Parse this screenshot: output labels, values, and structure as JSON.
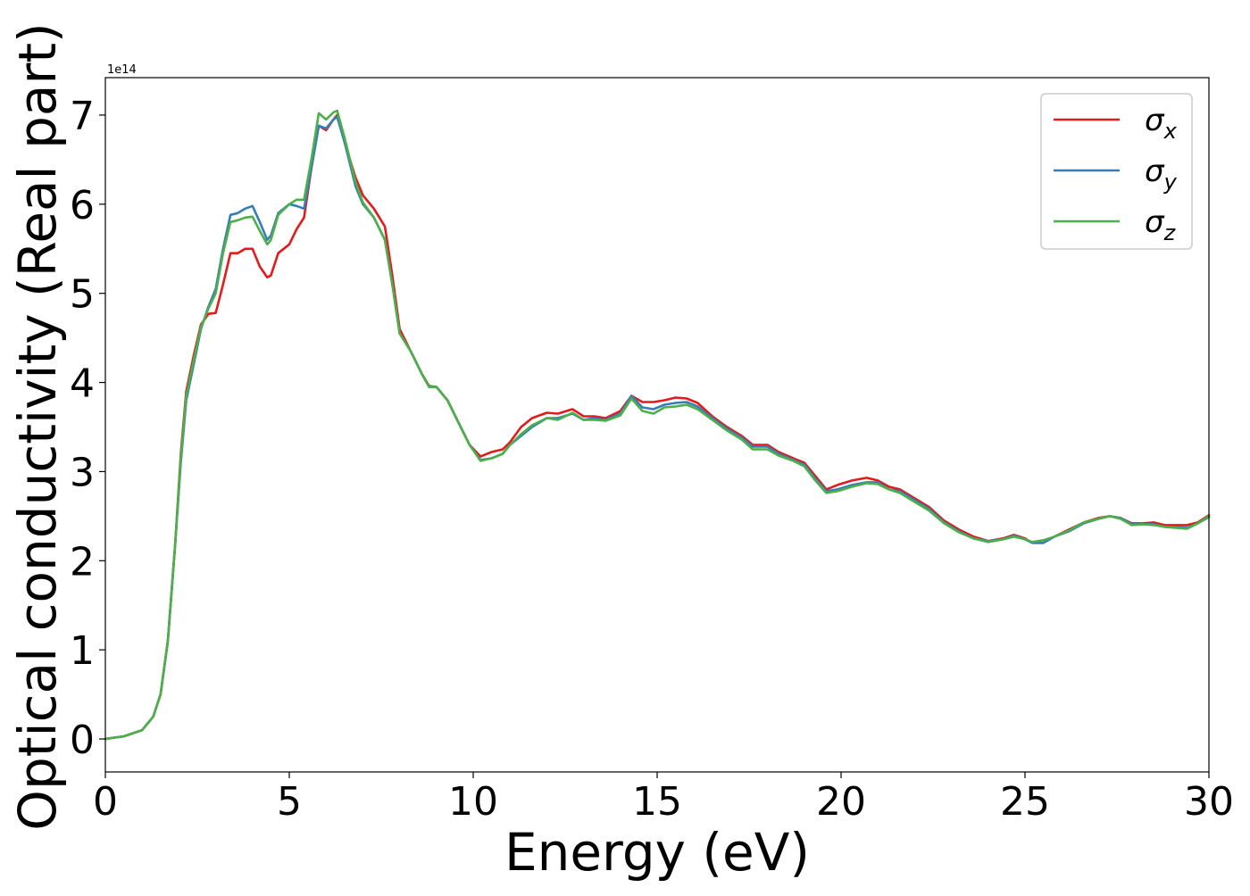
{
  "chart_data": {
    "type": "line",
    "xlabel": "Energy (eV)",
    "ylabel": "Optical conductivity (Real part)",
    "y_offset_label": "1e14",
    "xlim": [
      0,
      30
    ],
    "ylim": [
      -0.37,
      7.42
    ],
    "x_ticks": [
      0,
      5,
      10,
      15,
      20,
      25,
      30
    ],
    "y_ticks": [
      0,
      1,
      2,
      3,
      4,
      5,
      6,
      7
    ],
    "grid": false,
    "legend_position": "top-right",
    "series": [
      {
        "name": "σ",
        "subscript": "x",
        "color": "#e41a1c",
        "x": [
          0,
          0.5,
          1.0,
          1.3,
          1.5,
          1.7,
          1.9,
          2.05,
          2.2,
          2.4,
          2.6,
          2.8,
          3.0,
          3.2,
          3.4,
          3.6,
          3.8,
          4.0,
          4.2,
          4.4,
          4.5,
          4.7,
          5.0,
          5.2,
          5.4,
          5.6,
          5.8,
          6.0,
          6.2,
          6.3,
          6.5,
          6.8,
          7.0,
          7.3,
          7.6,
          7.8,
          8.0,
          8.3,
          8.6,
          8.8,
          9.0,
          9.3,
          9.6,
          9.9,
          10.2,
          10.5,
          10.8,
          11.0,
          11.3,
          11.6,
          12.0,
          12.3,
          12.7,
          13.0,
          13.3,
          13.6,
          14.0,
          14.3,
          14.6,
          14.9,
          15.2,
          15.5,
          15.8,
          16.1,
          16.5,
          16.9,
          17.3,
          17.6,
          18.0,
          18.3,
          18.7,
          19.0,
          19.3,
          19.6,
          19.9,
          20.3,
          20.7,
          21.0,
          21.3,
          21.6,
          22.0,
          22.4,
          22.8,
          23.2,
          23.6,
          24.0,
          24.4,
          24.7,
          25.0,
          25.2,
          25.5,
          25.8,
          26.2,
          26.6,
          27.0,
          27.3,
          27.6,
          27.9,
          28.2,
          28.5,
          28.8,
          29.1,
          29.4,
          29.7,
          30.0
        ],
        "y": [
          0,
          0.03,
          0.1,
          0.25,
          0.5,
          1.1,
          2.2,
          3.2,
          3.9,
          4.3,
          4.65,
          4.77,
          4.78,
          5.1,
          5.45,
          5.45,
          5.5,
          5.5,
          5.3,
          5.18,
          5.2,
          5.45,
          5.55,
          5.72,
          5.85,
          6.4,
          6.88,
          6.83,
          6.95,
          7.0,
          6.7,
          6.3,
          6.1,
          5.95,
          5.75,
          5.2,
          4.6,
          4.35,
          4.1,
          3.96,
          3.95,
          3.8,
          3.55,
          3.3,
          3.17,
          3.22,
          3.25,
          3.33,
          3.5,
          3.6,
          3.66,
          3.65,
          3.7,
          3.62,
          3.62,
          3.6,
          3.68,
          3.85,
          3.78,
          3.78,
          3.8,
          3.83,
          3.82,
          3.77,
          3.62,
          3.5,
          3.4,
          3.3,
          3.3,
          3.22,
          3.15,
          3.1,
          2.95,
          2.8,
          2.85,
          2.9,
          2.93,
          2.9,
          2.83,
          2.8,
          2.7,
          2.6,
          2.45,
          2.35,
          2.27,
          2.22,
          2.25,
          2.29,
          2.25,
          2.2,
          2.2,
          2.27,
          2.35,
          2.43,
          2.48,
          2.5,
          2.48,
          2.42,
          2.42,
          2.43,
          2.4,
          2.4,
          2.4,
          2.43,
          2.51
        ]
      },
      {
        "name": "σ",
        "subscript": "y",
        "color": "#377eb8",
        "x": [
          0,
          0.5,
          1.0,
          1.3,
          1.5,
          1.7,
          1.9,
          2.05,
          2.2,
          2.4,
          2.6,
          2.8,
          3.0,
          3.2,
          3.4,
          3.6,
          3.8,
          4.0,
          4.2,
          4.4,
          4.5,
          4.7,
          5.0,
          5.2,
          5.4,
          5.6,
          5.8,
          6.0,
          6.2,
          6.3,
          6.5,
          6.8,
          7.0,
          7.3,
          7.6,
          7.8,
          8.0,
          8.3,
          8.6,
          8.8,
          9.0,
          9.3,
          9.6,
          9.9,
          10.2,
          10.5,
          10.8,
          11.0,
          11.3,
          11.6,
          12.0,
          12.3,
          12.7,
          13.0,
          13.3,
          13.6,
          14.0,
          14.3,
          14.6,
          14.9,
          15.2,
          15.5,
          15.8,
          16.1,
          16.5,
          16.9,
          17.3,
          17.6,
          18.0,
          18.3,
          18.7,
          19.0,
          19.3,
          19.6,
          19.9,
          20.3,
          20.7,
          21.0,
          21.3,
          21.6,
          22.0,
          22.4,
          22.8,
          23.2,
          23.6,
          24.0,
          24.4,
          24.7,
          25.0,
          25.2,
          25.5,
          25.8,
          26.2,
          26.6,
          27.0,
          27.3,
          27.6,
          27.9,
          28.2,
          28.5,
          28.8,
          29.1,
          29.4,
          29.7,
          30.0
        ],
        "y": [
          0,
          0.03,
          0.1,
          0.25,
          0.5,
          1.1,
          2.2,
          3.1,
          3.8,
          4.2,
          4.6,
          4.85,
          5.05,
          5.5,
          5.88,
          5.9,
          5.95,
          5.98,
          5.8,
          5.6,
          5.65,
          5.9,
          6.0,
          5.98,
          5.95,
          6.4,
          6.88,
          6.85,
          6.95,
          6.98,
          6.7,
          6.2,
          6.0,
          5.85,
          5.6,
          5.1,
          4.55,
          4.35,
          4.1,
          3.95,
          3.95,
          3.8,
          3.55,
          3.3,
          3.13,
          3.15,
          3.2,
          3.3,
          3.4,
          3.5,
          3.6,
          3.6,
          3.65,
          3.58,
          3.6,
          3.58,
          3.65,
          3.85,
          3.72,
          3.7,
          3.75,
          3.77,
          3.78,
          3.73,
          3.6,
          3.48,
          3.38,
          3.28,
          3.28,
          3.2,
          3.13,
          3.08,
          2.92,
          2.78,
          2.8,
          2.85,
          2.88,
          2.88,
          2.8,
          2.78,
          2.68,
          2.58,
          2.43,
          2.33,
          2.25,
          2.22,
          2.24,
          2.28,
          2.24,
          2.2,
          2.2,
          2.27,
          2.33,
          2.42,
          2.47,
          2.5,
          2.48,
          2.41,
          2.41,
          2.41,
          2.38,
          2.38,
          2.37,
          2.42,
          2.49
        ]
      },
      {
        "name": "σ",
        "subscript": "z",
        "color": "#4daf4a",
        "x": [
          0,
          0.5,
          1.0,
          1.3,
          1.5,
          1.7,
          1.9,
          2.05,
          2.2,
          2.4,
          2.6,
          2.8,
          3.0,
          3.2,
          3.4,
          3.6,
          3.8,
          4.0,
          4.2,
          4.4,
          4.5,
          4.7,
          5.0,
          5.2,
          5.4,
          5.6,
          5.8,
          6.0,
          6.2,
          6.3,
          6.5,
          6.8,
          7.0,
          7.3,
          7.6,
          7.8,
          8.0,
          8.3,
          8.6,
          8.8,
          9.0,
          9.3,
          9.6,
          9.9,
          10.2,
          10.5,
          10.8,
          11.0,
          11.3,
          11.6,
          12.0,
          12.3,
          12.7,
          13.0,
          13.3,
          13.6,
          14.0,
          14.3,
          14.6,
          14.9,
          15.2,
          15.5,
          15.8,
          16.1,
          16.5,
          16.9,
          17.3,
          17.6,
          18.0,
          18.3,
          18.7,
          19.0,
          19.3,
          19.6,
          19.9,
          20.3,
          20.7,
          21.0,
          21.3,
          21.6,
          22.0,
          22.4,
          22.8,
          23.2,
          23.6,
          24.0,
          24.4,
          24.7,
          25.0,
          25.2,
          25.5,
          25.8,
          26.2,
          26.6,
          27.0,
          27.3,
          27.6,
          27.9,
          28.2,
          28.5,
          28.8,
          29.1,
          29.4,
          29.7,
          30.0
        ],
        "y": [
          0,
          0.03,
          0.1,
          0.25,
          0.5,
          1.1,
          2.2,
          3.15,
          3.85,
          4.25,
          4.62,
          4.83,
          5.0,
          5.45,
          5.8,
          5.82,
          5.85,
          5.86,
          5.7,
          5.55,
          5.6,
          5.88,
          6.0,
          6.05,
          6.05,
          6.5,
          7.02,
          6.95,
          7.03,
          7.05,
          6.75,
          6.25,
          6.02,
          5.85,
          5.6,
          5.1,
          4.55,
          4.35,
          4.1,
          3.95,
          3.95,
          3.8,
          3.55,
          3.3,
          3.12,
          3.15,
          3.2,
          3.3,
          3.42,
          3.52,
          3.6,
          3.58,
          3.66,
          3.58,
          3.58,
          3.57,
          3.63,
          3.82,
          3.68,
          3.65,
          3.72,
          3.73,
          3.75,
          3.7,
          3.58,
          3.46,
          3.36,
          3.25,
          3.25,
          3.18,
          3.12,
          3.06,
          2.9,
          2.76,
          2.78,
          2.83,
          2.87,
          2.86,
          2.8,
          2.76,
          2.66,
          2.56,
          2.42,
          2.32,
          2.25,
          2.21,
          2.24,
          2.27,
          2.24,
          2.21,
          2.23,
          2.27,
          2.34,
          2.43,
          2.47,
          2.5,
          2.47,
          2.4,
          2.41,
          2.4,
          2.38,
          2.37,
          2.36,
          2.42,
          2.5
        ]
      }
    ]
  }
}
